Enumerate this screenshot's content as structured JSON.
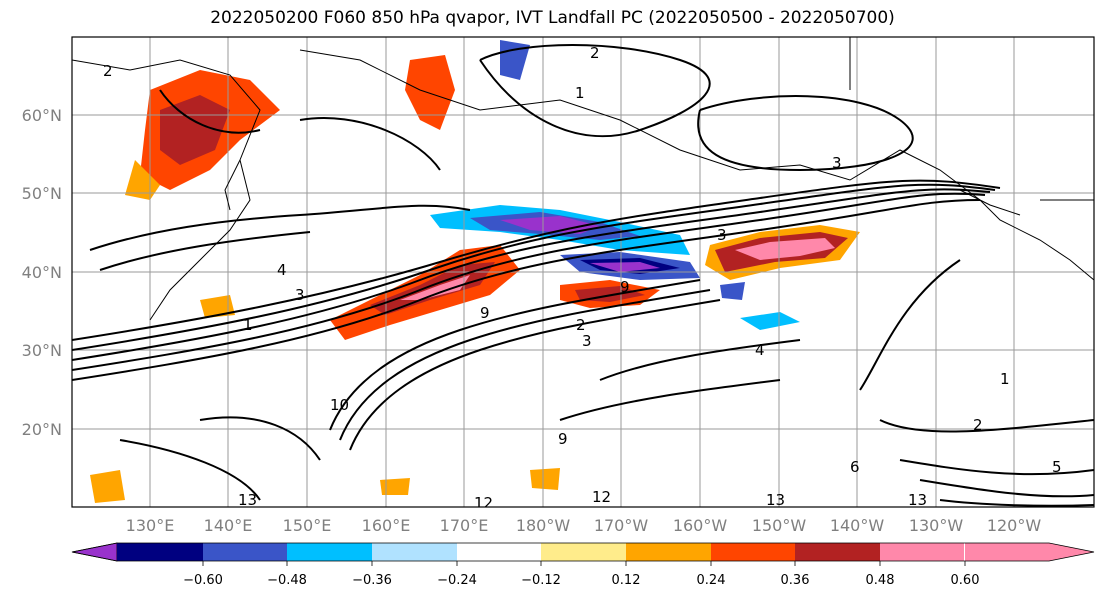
{
  "title": "2022050200 F060 850 hPa qvapor, IVT Landfall PC (2022050500 - 2022050700)",
  "map": {
    "lat_labels": [
      "60°N",
      "50°N",
      "40°N",
      "30°N",
      "20°N"
    ],
    "lon_labels": [
      "130°E",
      "140°E",
      "150°E",
      "160°E",
      "170°E",
      "180°W",
      "170°W",
      "160°W",
      "150°W",
      "140°W",
      "130°W",
      "120°W"
    ],
    "contour_labels": [
      "1",
      "2",
      "3",
      "4",
      "5",
      "6",
      "9",
      "10",
      "12",
      "13"
    ]
  },
  "colorbar": {
    "tick_labels": [
      "−0.60",
      "−0.48",
      "−0.36",
      "−0.24",
      "−0.12",
      "0.12",
      "0.24",
      "0.36",
      "0.48",
      "0.60"
    ],
    "colors": [
      "#9932cc",
      "#000080",
      "#3a55c8",
      "#00bfff",
      "#b0e2ff",
      "#ffffff",
      "#ffec8b",
      "#ffa500",
      "#ff4500",
      "#b22222",
      "#ff88aa"
    ]
  }
}
